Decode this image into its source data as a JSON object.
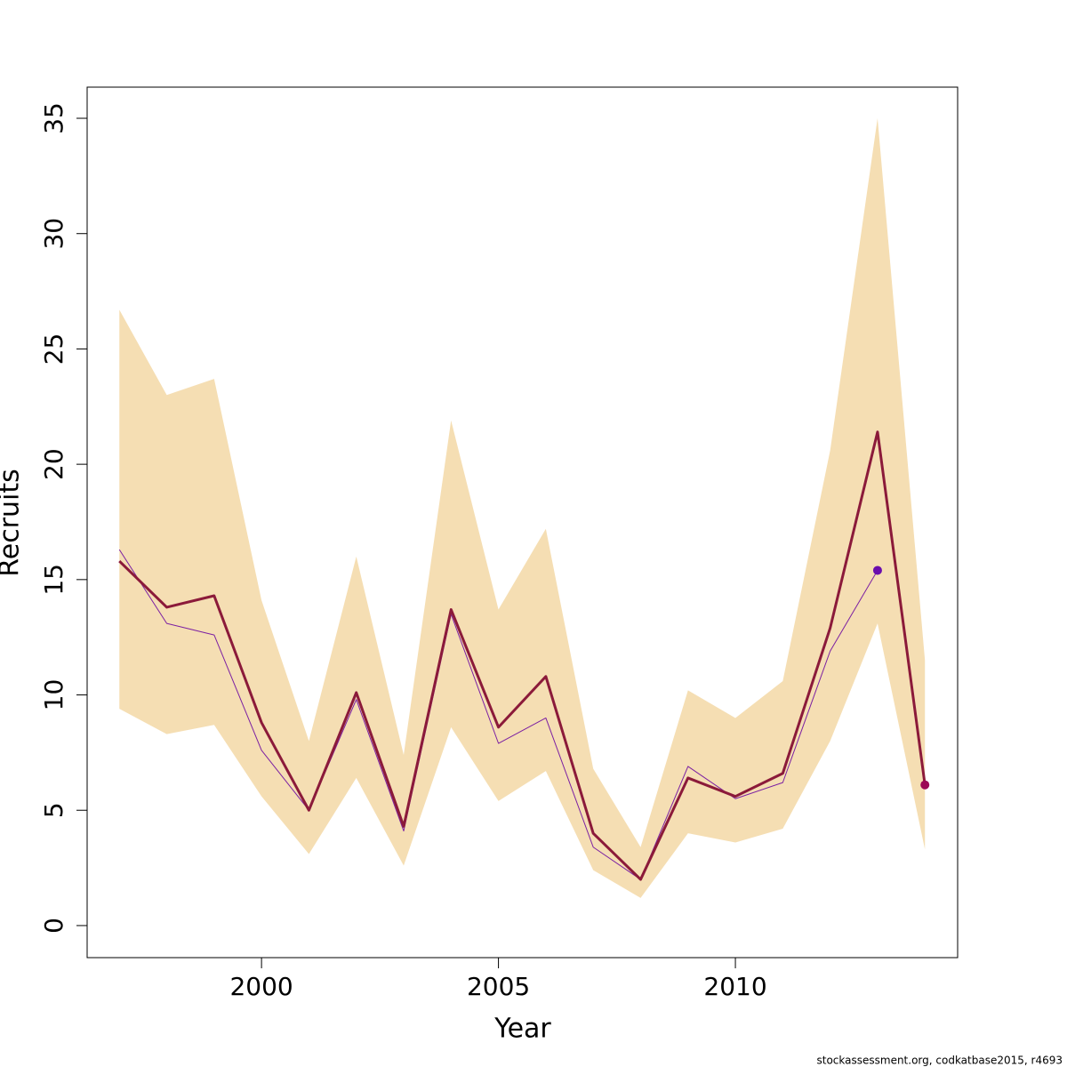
{
  "chart_data": {
    "type": "line",
    "xlabel": "Year",
    "ylabel": "Recruits",
    "footnote": "stockassessment.org, codkatbase2015, r4693",
    "x": [
      1997,
      1998,
      1999,
      2000,
      2001,
      2002,
      2003,
      2004,
      2005,
      2006,
      2007,
      2008,
      2009,
      2010,
      2011,
      2012,
      2013,
      2014
    ],
    "band": {
      "color": "#f5deb3",
      "upper": [
        26.7,
        23.0,
        23.7,
        14.1,
        8.0,
        16.0,
        7.4,
        21.9,
        13.7,
        17.2,
        6.8,
        3.4,
        10.2,
        9.0,
        10.6,
        20.6,
        35.0,
        11.5
      ],
      "lower": [
        9.4,
        8.3,
        8.7,
        5.6,
        3.1,
        6.4,
        2.6,
        8.6,
        5.4,
        6.7,
        2.4,
        1.2,
        4.0,
        3.6,
        4.2,
        8.0,
        13.1,
        3.3
      ]
    },
    "series": [
      {
        "color": "#7b1fa2",
        "point_color": "#6a0dad",
        "end_point": true,
        "values": [
          16.3,
          13.1,
          12.6,
          7.6,
          5.0,
          9.8,
          4.1,
          13.5,
          7.9,
          9.0,
          3.4,
          2.0,
          6.9,
          5.5,
          6.2,
          11.9,
          15.4,
          null
        ]
      },
      {
        "color": "#8b1a3a",
        "point_color": "#9c0a55",
        "end_point": true,
        "thick": true,
        "values": [
          15.8,
          13.8,
          14.3,
          8.8,
          5.0,
          10.1,
          4.3,
          13.7,
          8.6,
          10.8,
          4.0,
          2.0,
          6.4,
          5.6,
          6.6,
          12.9,
          21.4,
          6.1
        ]
      }
    ],
    "xlim": [
      1996.32,
      2014.69
    ],
    "ylim": [
      -1.39,
      36.35
    ],
    "xticks": [
      2000,
      2005,
      2010
    ],
    "yticks": [
      0,
      5,
      10,
      15,
      20,
      25,
      30,
      35
    ]
  }
}
